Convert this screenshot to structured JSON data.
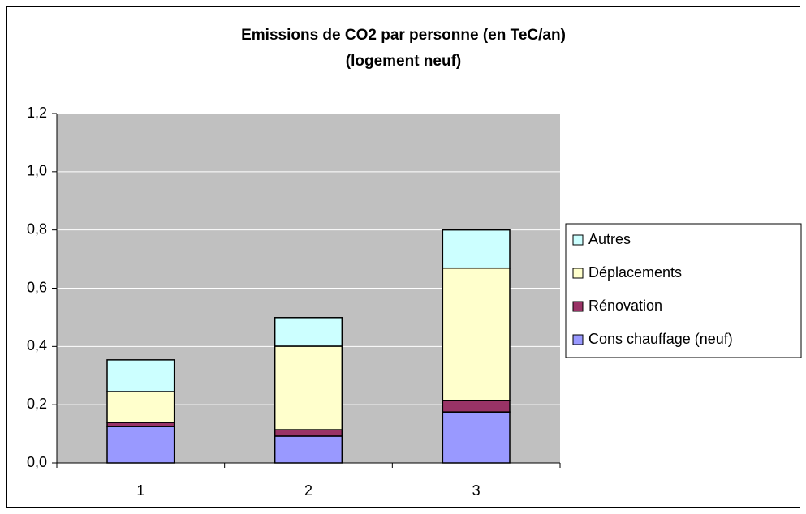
{
  "chart_data": {
    "type": "stacked_bar",
    "title": [
      "Emissions de CO2 par personne (en TeC/an)",
      "(logement neuf)"
    ],
    "categories": [
      "1",
      "2",
      "3"
    ],
    "series": [
      {
        "name": "Cons chauffage (neuf)",
        "color": "#9999ff",
        "values": [
          0.125,
          0.092,
          0.175
        ]
      },
      {
        "name": "Rénovation",
        "color": "#993366",
        "values": [
          0.014,
          0.022,
          0.039
        ]
      },
      {
        "name": "Déplacements",
        "color": "#ffffcc",
        "values": [
          0.106,
          0.287,
          0.455
        ]
      },
      {
        "name": "Autres",
        "color": "#ccffff",
        "values": [
          0.109,
          0.098,
          0.131
        ]
      }
    ],
    "ylim": [
      0,
      1.2
    ],
    "yticks": [
      {
        "value": 0,
        "label": "0,0"
      },
      {
        "value": 0.2,
        "label": "0,2"
      },
      {
        "value": 0.4,
        "label": "0,4"
      },
      {
        "value": 0.6,
        "label": "0,6"
      },
      {
        "value": 0.8,
        "label": "0,8"
      },
      {
        "value": 1.0,
        "label": "1,0"
      },
      {
        "value": 1.2,
        "label": "1,2"
      }
    ],
    "grid": true,
    "legend": "right"
  }
}
